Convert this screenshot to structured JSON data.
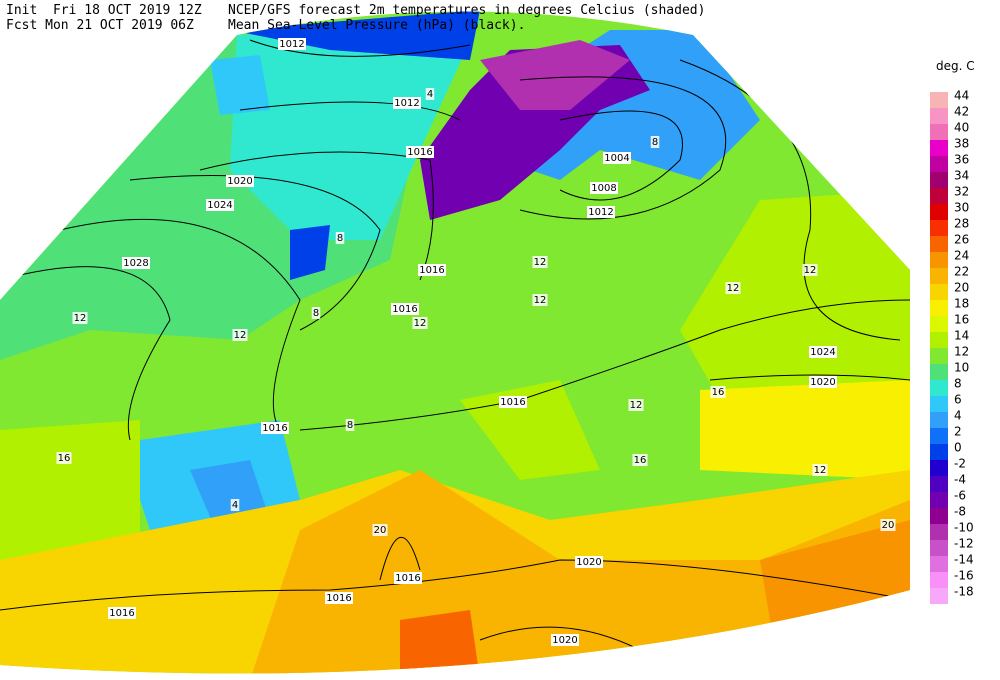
{
  "header": {
    "init": "Init  Fri 18 OCT 2019 12Z",
    "fcst": "Fcst Mon 21 OCT 2019 06Z",
    "title_line1": "NCEP/GFS forecast 2m temperatures in degrees Celcius (shaded)",
    "title_line2": "Mean Sea-Level Pressure (hPa) (black)."
  },
  "legend": {
    "title": "deg. C",
    "items": [
      {
        "label": "44",
        "color": "#f8b4b4"
      },
      {
        "label": "42",
        "color": "#f894c4"
      },
      {
        "label": "40",
        "color": "#f070b8"
      },
      {
        "label": "38",
        "color": "#e800c8"
      },
      {
        "label": "36",
        "color": "#c000a0"
      },
      {
        "label": "34",
        "color": "#a00070"
      },
      {
        "label": "32",
        "color": "#c00038"
      },
      {
        "label": "30",
        "color": "#e00000"
      },
      {
        "label": "28",
        "color": "#f83000"
      },
      {
        "label": "26",
        "color": "#f86400"
      },
      {
        "label": "24",
        "color": "#f89400"
      },
      {
        "label": "22",
        "color": "#f8b400"
      },
      {
        "label": "20",
        "color": "#f8d400"
      },
      {
        "label": "18",
        "color": "#f8f000"
      },
      {
        "label": "16",
        "color": "#dcf800"
      },
      {
        "label": "14",
        "color": "#b0f000"
      },
      {
        "label": "12",
        "color": "#80e830"
      },
      {
        "label": "10",
        "color": "#50e078"
      },
      {
        "label": "8",
        "color": "#30e8d0"
      },
      {
        "label": "6",
        "color": "#30c8f8"
      },
      {
        "label": "4",
        "color": "#30a0f8"
      },
      {
        "label": "2",
        "color": "#1070f8"
      },
      {
        "label": "0",
        "color": "#0040e8"
      },
      {
        "label": "-2",
        "color": "#2000d0"
      },
      {
        "label": "-4",
        "color": "#5000c0"
      },
      {
        "label": "-6",
        "color": "#7000b0"
      },
      {
        "label": "-8",
        "color": "#900090"
      },
      {
        "label": "-10",
        "color": "#b030b0"
      },
      {
        "label": "-12",
        "color": "#c850c8"
      },
      {
        "label": "-14",
        "color": "#e070e0"
      },
      {
        "label": "-16",
        "color": "#f890f8"
      },
      {
        "label": "-18",
        "color": "#f8a8f8"
      }
    ]
  },
  "map": {
    "isobar_labels": [
      "1012",
      "1012",
      "1016",
      "1020",
      "1024",
      "1028",
      "1016",
      "1016",
      "1004",
      "1008",
      "1012",
      "1016",
      "1016",
      "1024",
      "1020",
      "1020",
      "1016",
      "1016",
      "1016",
      "1020"
    ],
    "temperature_labels": [
      "12",
      "12",
      "16",
      "12",
      "12",
      "12",
      "16",
      "12",
      "20",
      "20",
      "8",
      "4",
      "8",
      "12",
      "16",
      "12",
      "8",
      "4",
      "12",
      "8"
    ]
  }
}
